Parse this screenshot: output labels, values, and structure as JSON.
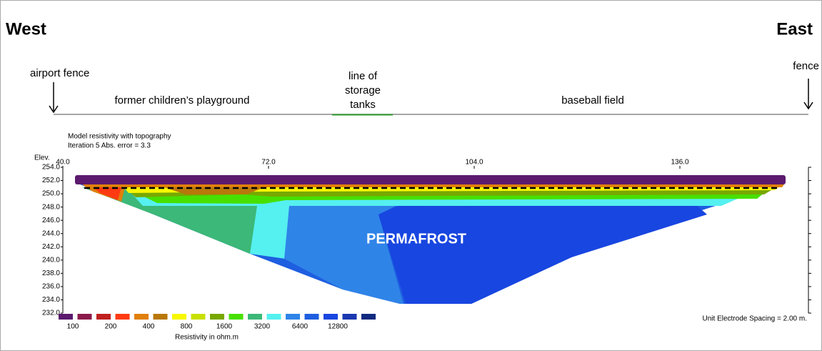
{
  "header": {
    "west": "West",
    "east": "East"
  },
  "annotations": {
    "airport_fence": "airport fence",
    "fence": "fence",
    "playground": "former children’s playground",
    "tanks": [
      "line of",
      "storage",
      "tanks"
    ],
    "baseball": "baseball field"
  },
  "section": {
    "title": "Model resistivity with topography",
    "subtitle": "Iteration 5 Abs. error = 3.3",
    "y_label": "Elev.",
    "xlim": [
      40,
      156
    ],
    "xticks": [
      {
        "value": 40,
        "label": "40.0"
      },
      {
        "value": 72,
        "label": "72.0"
      },
      {
        "value": 104,
        "label": "104.0"
      },
      {
        "value": 136,
        "label": "136.0"
      }
    ],
    "ylim": [
      232,
      254
    ],
    "yticks": [
      {
        "value": 254,
        "label": "254.0"
      },
      {
        "value": 252,
        "label": "252.0"
      },
      {
        "value": 250,
        "label": "250.0"
      },
      {
        "value": 248,
        "label": "248.0"
      },
      {
        "value": 246,
        "label": "246.0"
      },
      {
        "value": 244,
        "label": "244.0"
      },
      {
        "value": 242,
        "label": "242.0"
      },
      {
        "value": 240,
        "label": "240.0"
      },
      {
        "value": 238,
        "label": "238.0"
      },
      {
        "value": 236,
        "label": "236.0"
      },
      {
        "value": 234,
        "label": "234.0"
      },
      {
        "value": 232,
        "label": "232.0"
      }
    ],
    "label": "PERMAFROST",
    "note": "Unit Electrode Spacing = 2.00 m."
  },
  "legend": {
    "colors": [
      "#5b1a6e",
      "#8b1a4b",
      "#c01f1f",
      "#ff3a12",
      "#e0800a",
      "#b8780a",
      "#f8f800",
      "#c8e000",
      "#78a800",
      "#48e000",
      "#3cb878",
      "#55f0f0",
      "#2f84e8",
      "#1e5ee0",
      "#1846e0",
      "#1a38b0",
      "#102a80"
    ],
    "labels": [
      "100",
      "200",
      "400",
      "800",
      "1600",
      "3200",
      "6400",
      "12800"
    ],
    "title": "Resistivity in ohm.m"
  }
}
